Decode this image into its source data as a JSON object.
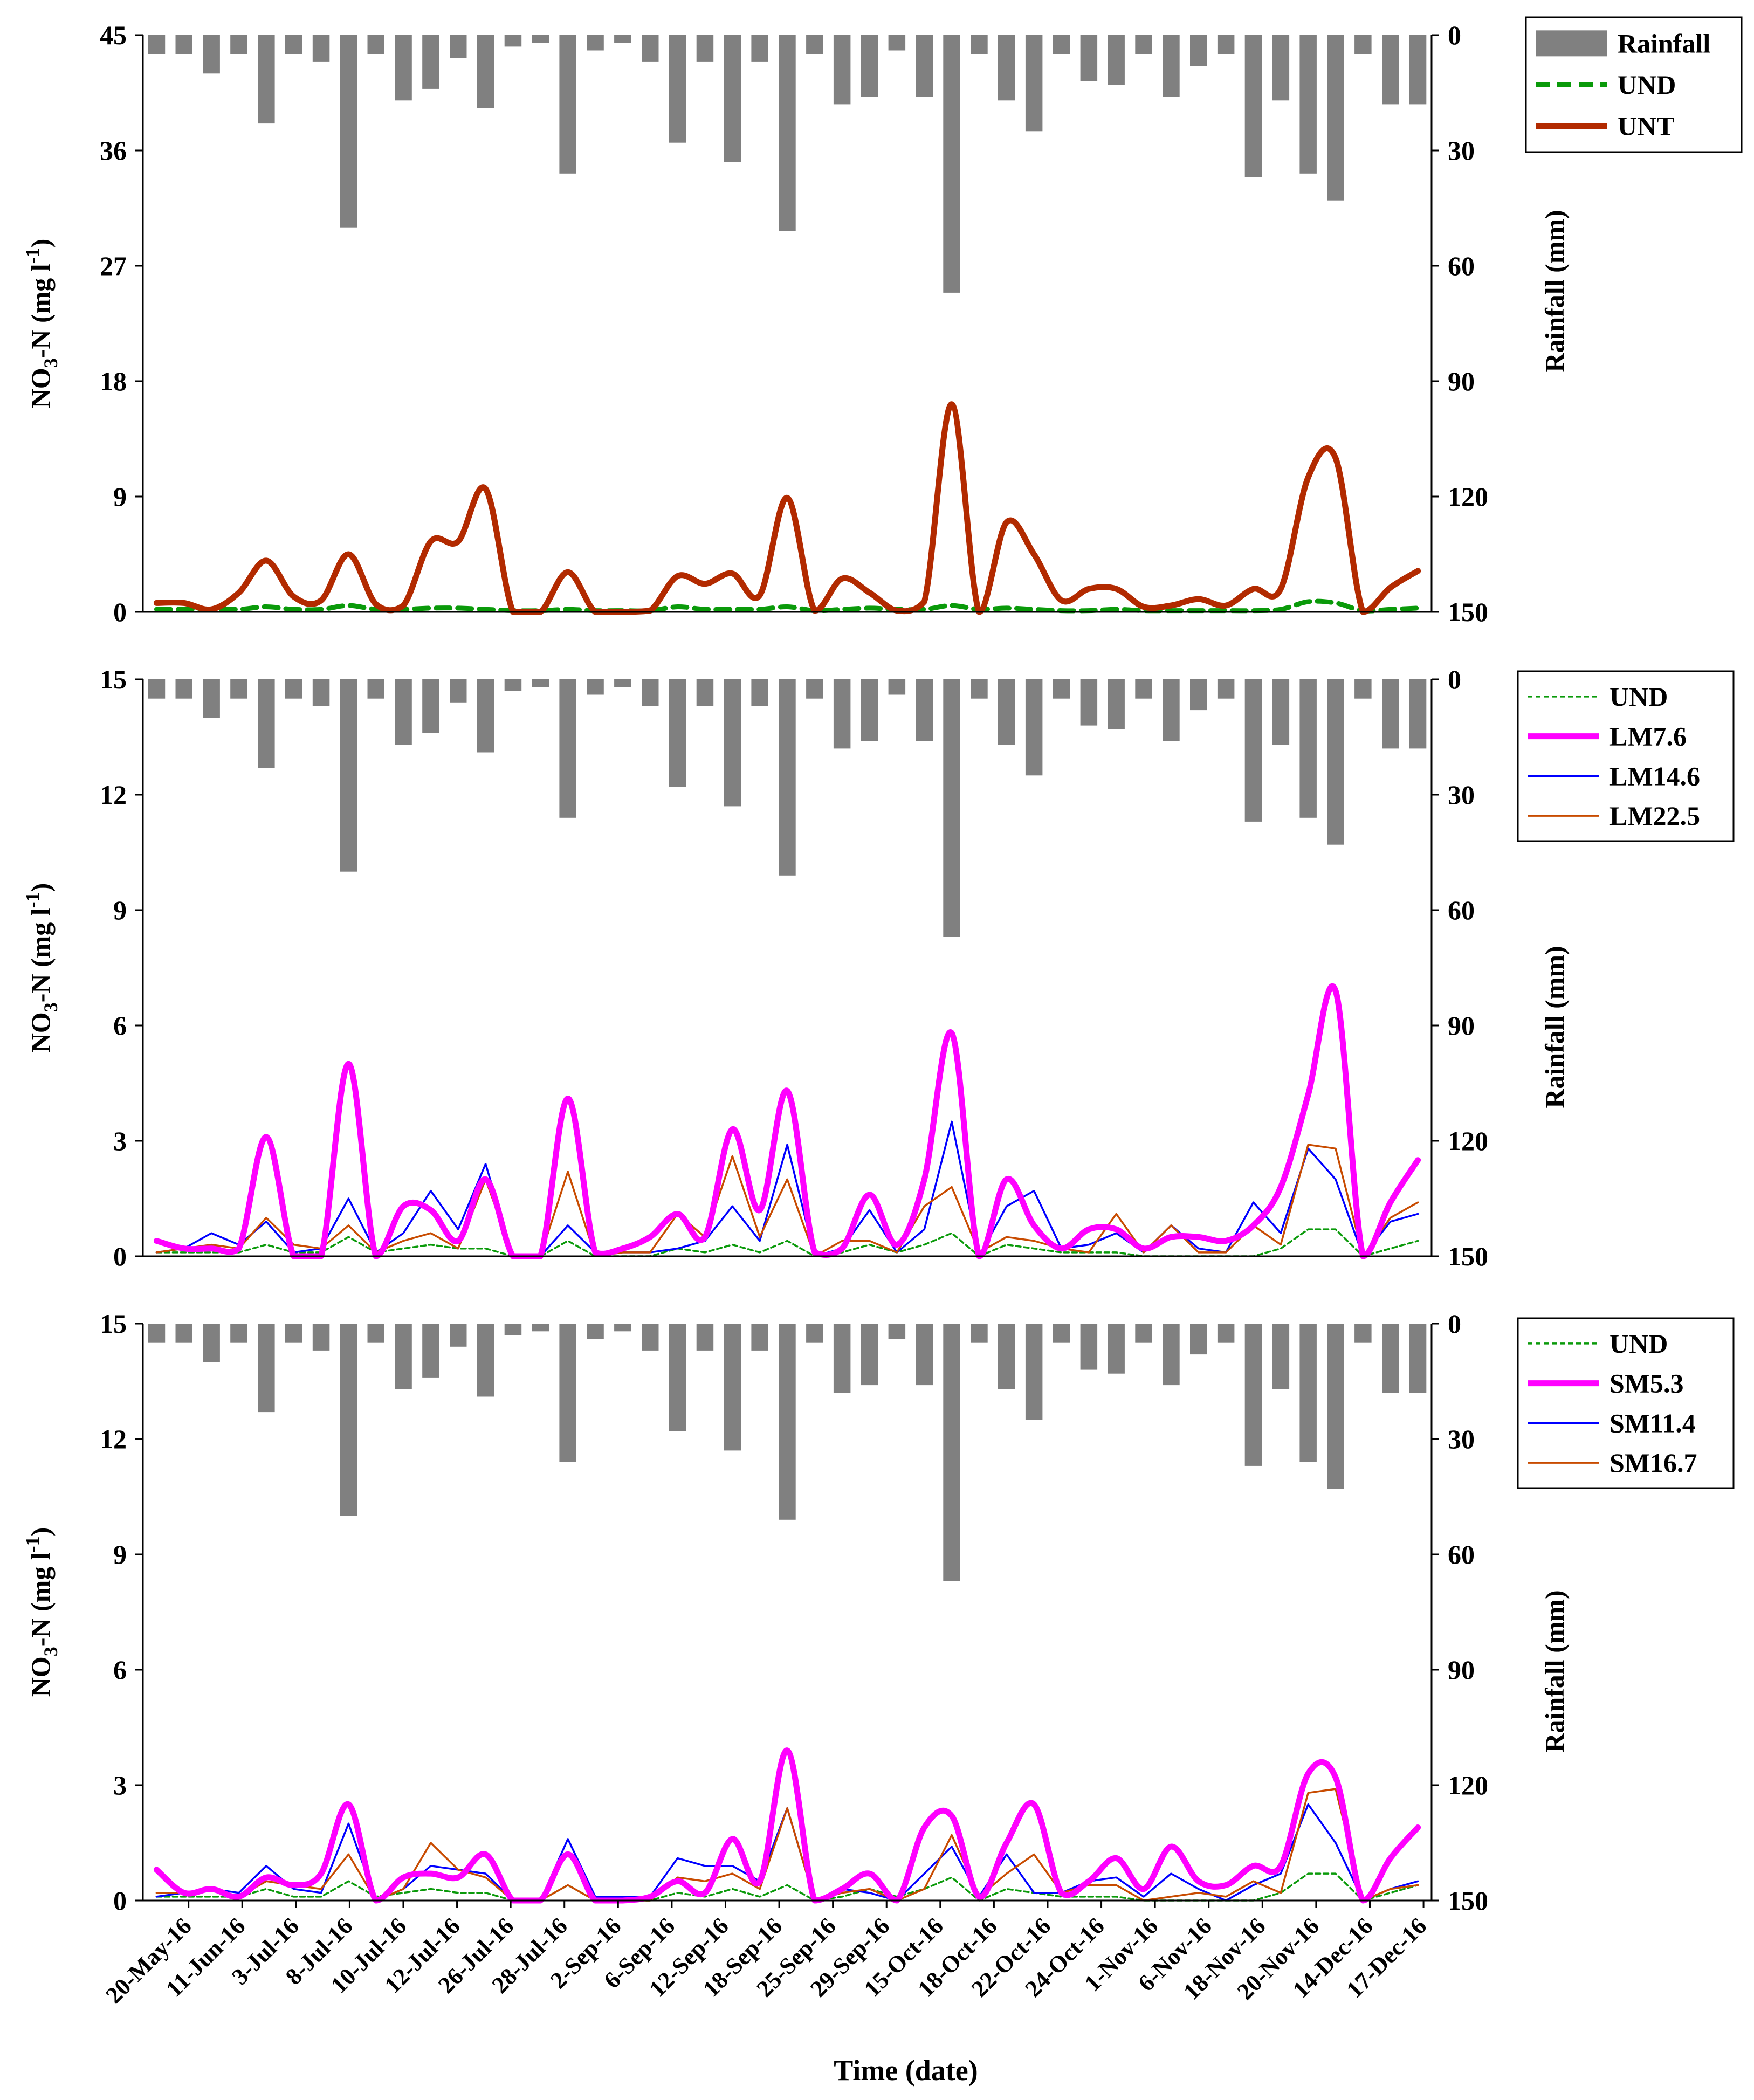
{
  "figure": {
    "xlabel": "Time (date)"
  },
  "colors": {
    "rainfall": "#808080",
    "UND": "#0a9a0a",
    "UNT": "#b22a00",
    "LM7.6": "#ff00ff",
    "LM14.6": "#0000ff",
    "LM22.5": "#c84b00",
    "SM5.3": "#ff00ff",
    "SM11.4": "#0000ff",
    "SM16.7": "#c84b00"
  },
  "date_labels": [
    "20-May-16",
    "11-Jun-16",
    "3-Jul-16",
    "8-Jul-16",
    "10-Jul-16",
    "12-Jul-16",
    "26-Jul-16",
    "28-Jul-16",
    "2-Sep-16",
    "6-Sep-16",
    "12-Sep-16",
    "18-Sep-16",
    "25-Sep-16",
    "29-Sep-16",
    "15-Oct-16",
    "18-Oct-16",
    "22-Oct-16",
    "24-Oct-16",
    "1-Nov-16",
    "6-Nov-16",
    "18-Nov-16",
    "20-Nov-16",
    "14-Dec-16",
    "17-Dec-16"
  ],
  "chart_data": [
    {
      "type": "line",
      "panel": "top",
      "ylabel_main": "NO",
      "ylabel_sub": "3",
      "ylabel_rest": "-N (mg l",
      "ylabel_sup": "-1",
      "ylabel_close": ")",
      "y2label": "Rainfall (mm)",
      "ylim": [
        0,
        45
      ],
      "yticks": [
        0,
        9,
        18,
        27,
        36,
        45
      ],
      "y2lim": [
        0,
        150
      ],
      "y2ticks": [
        0,
        30,
        60,
        90,
        120,
        150
      ],
      "rainfall": [
        5,
        5,
        10,
        5,
        23,
        5,
        7,
        50,
        5,
        17,
        14,
        6,
        19,
        3,
        2,
        36,
        4,
        2,
        7,
        28,
        7,
        33,
        7,
        51,
        5,
        18,
        16,
        4,
        16,
        67,
        5,
        17,
        25,
        5,
        12,
        13,
        5,
        16,
        8,
        5,
        37,
        17,
        36,
        43,
        5,
        18,
        18
      ],
      "legend": [
        "Rainfall",
        "UND",
        "UNT"
      ],
      "series": [
        {
          "name": "UND",
          "style": "dashed-thick",
          "values": [
            0.2,
            0.2,
            0.2,
            0.2,
            0.4,
            0.2,
            0.2,
            0.5,
            0.2,
            0.2,
            0.3,
            0.3,
            0.2,
            0.1,
            0.1,
            0.2,
            0.1,
            0.1,
            0.1,
            0.4,
            0.2,
            0.2,
            0.2,
            0.4,
            0.1,
            0.2,
            0.3,
            0.2,
            0.2,
            0.5,
            0.2,
            0.3,
            0.2,
            0.1,
            0.1,
            0.2,
            0.1,
            0.1,
            0.1,
            0.1,
            0.1,
            0.2,
            0.8,
            0.7,
            0.1,
            0.2,
            0.3
          ]
        },
        {
          "name": "UNT",
          "style": "solid-thick",
          "values": [
            0.7,
            0.7,
            0.2,
            1.5,
            4.0,
            1.2,
            0.9,
            4.5,
            0.6,
            0.5,
            5.5,
            5.5,
            9.6,
            0,
            0,
            3.1,
            0,
            0,
            0.1,
            2.8,
            2.2,
            3.0,
            1.3,
            8.9,
            0.1,
            2.6,
            1.5,
            0.1,
            0.8,
            16.2,
            0,
            7.0,
            4.5,
            0.9,
            1.8,
            1.8,
            0.4,
            0.5,
            1.0,
            0.5,
            1.8,
            1.8,
            10.5,
            12.0,
            0,
            1.9,
            3.2
          ]
        }
      ]
    },
    {
      "type": "line",
      "panel": "middle",
      "ylabel_main": "NO",
      "ylabel_sub": "3",
      "ylabel_rest": "-N (mg l",
      "ylabel_sup": "-1",
      "ylabel_close": ")",
      "y2label": "Rainfall (mm)",
      "ylim": [
        0,
        15
      ],
      "yticks": [
        0,
        3,
        6,
        9,
        12,
        15
      ],
      "y2lim": [
        0,
        150
      ],
      "y2ticks": [
        0,
        30,
        60,
        90,
        120,
        150
      ],
      "rainfall": [
        5,
        5,
        10,
        5,
        23,
        5,
        7,
        50,
        5,
        17,
        14,
        6,
        19,
        3,
        2,
        36,
        4,
        2,
        7,
        28,
        7,
        33,
        7,
        51,
        5,
        18,
        16,
        4,
        16,
        67,
        5,
        17,
        25,
        5,
        12,
        13,
        5,
        16,
        8,
        5,
        37,
        17,
        36,
        43,
        5,
        18,
        18
      ],
      "legend": [
        "UND",
        "LM7.6",
        "LM14.6",
        "LM22.5"
      ],
      "series": [
        {
          "name": "UND",
          "style": "dashed-thin",
          "values": [
            0.1,
            0.1,
            0.1,
            0.1,
            0.3,
            0.1,
            0.1,
            0.5,
            0.1,
            0.2,
            0.3,
            0.2,
            0.2,
            0,
            0,
            0.4,
            0,
            0,
            0,
            0.2,
            0.1,
            0.3,
            0.1,
            0.4,
            0,
            0.1,
            0.3,
            0.1,
            0.3,
            0.6,
            0,
            0.3,
            0.2,
            0.1,
            0.1,
            0.1,
            0,
            0,
            0,
            0,
            0,
            0.2,
            0.7,
            0.7,
            0,
            0.2,
            0.4
          ]
        },
        {
          "name": "LM7.6",
          "style": "solid-thick",
          "values": [
            0.4,
            0.2,
            0.2,
            0.2,
            3.1,
            0,
            0,
            5.0,
            0,
            1.3,
            1.2,
            0.4,
            2.0,
            0,
            0,
            4.1,
            0.1,
            0.2,
            0.5,
            1.1,
            0.5,
            3.3,
            1.2,
            4.3,
            0.1,
            0.2,
            1.6,
            0.3,
            2.0,
            5.8,
            0,
            2.0,
            0.8,
            0.2,
            0.7,
            0.7,
            0.2,
            0.5,
            0.5,
            0.4,
            0.8,
            1.8,
            4.2,
            6.9,
            0,
            1.4,
            2.5
          ]
        },
        {
          "name": "LM14.6",
          "style": "solid-thin",
          "values": [
            0.1,
            0.2,
            0.6,
            0.3,
            0.9,
            0.1,
            0.2,
            1.5,
            0.1,
            0.6,
            1.7,
            0.7,
            2.4,
            0,
            0,
            0.8,
            0.1,
            0.1,
            0.1,
            0.2,
            0.4,
            1.3,
            0.4,
            2.9,
            0,
            0.2,
            1.2,
            0.1,
            0.7,
            3.5,
            0,
            1.3,
            1.7,
            0.2,
            0.3,
            0.6,
            0.1,
            0.8,
            0.2,
            0.1,
            1.4,
            0.6,
            2.8,
            2.0,
            0,
            0.9,
            1.1
          ]
        },
        {
          "name": "LM22.5",
          "style": "solid-thin",
          "values": [
            0.1,
            0.2,
            0.3,
            0.2,
            1.0,
            0.3,
            0.2,
            0.8,
            0.1,
            0.4,
            0.6,
            0.2,
            2.0,
            0,
            0,
            2.2,
            0,
            0.1,
            0.1,
            1.1,
            0.5,
            2.6,
            0.5,
            2.0,
            0,
            0.4,
            0.4,
            0.1,
            1.3,
            1.8,
            0.1,
            0.5,
            0.4,
            0.2,
            0.1,
            1.1,
            0.1,
            0.8,
            0.1,
            0.1,
            0.8,
            0.3,
            2.9,
            2.8,
            0,
            1.0,
            1.4
          ]
        }
      ]
    },
    {
      "type": "line",
      "panel": "bottom",
      "ylabel_main": "NO",
      "ylabel_sub": "3",
      "ylabel_rest": "-N (mg l",
      "ylabel_sup": "-1",
      "ylabel_close": ")",
      "y2label": "Rainfall (mm)",
      "ylim": [
        0,
        15
      ],
      "yticks": [
        0,
        3,
        6,
        9,
        12,
        15
      ],
      "y2lim": [
        0,
        150
      ],
      "y2ticks": [
        0,
        30,
        60,
        90,
        120,
        150
      ],
      "rainfall": [
        5,
        5,
        10,
        5,
        23,
        5,
        7,
        50,
        5,
        17,
        14,
        6,
        19,
        3,
        2,
        36,
        4,
        2,
        7,
        28,
        7,
        33,
        7,
        51,
        5,
        18,
        16,
        4,
        16,
        67,
        5,
        17,
        25,
        5,
        12,
        13,
        5,
        16,
        8,
        5,
        37,
        17,
        36,
        43,
        5,
        18,
        18
      ],
      "legend": [
        "UND",
        "SM5.3",
        "SM11.4",
        "SM16.7"
      ],
      "series": [
        {
          "name": "UND",
          "style": "dashed-thin",
          "values": [
            0.1,
            0.1,
            0.1,
            0.1,
            0.3,
            0.1,
            0.1,
            0.5,
            0.1,
            0.2,
            0.3,
            0.2,
            0.2,
            0,
            0,
            0.4,
            0,
            0,
            0,
            0.2,
            0.1,
            0.3,
            0.1,
            0.4,
            0,
            0.1,
            0.3,
            0.1,
            0.3,
            0.6,
            0,
            0.3,
            0.2,
            0.1,
            0.1,
            0.1,
            0,
            0,
            0,
            0,
            0,
            0.2,
            0.7,
            0.7,
            0,
            0.2,
            0.4
          ]
        },
        {
          "name": "SM5.3",
          "style": "solid-thick",
          "values": [
            0.8,
            0.2,
            0.3,
            0.1,
            0.6,
            0.4,
            0.7,
            2.5,
            0,
            0.6,
            0.7,
            0.6,
            1.2,
            0,
            0,
            1.2,
            0,
            0,
            0.1,
            0.5,
            0.2,
            1.6,
            0.5,
            3.9,
            0,
            0.3,
            0.7,
            0,
            1.9,
            2.2,
            0.1,
            1.5,
            2.5,
            0.2,
            0.5,
            1.1,
            0.3,
            1.4,
            0.5,
            0.4,
            0.9,
            0.9,
            3.3,
            3.2,
            0,
            1.1,
            1.9
          ]
        },
        {
          "name": "SM11.4",
          "style": "solid-thin",
          "values": [
            0.1,
            0.2,
            0.3,
            0.2,
            0.9,
            0.3,
            0.2,
            2.0,
            0,
            0.3,
            0.9,
            0.8,
            0.7,
            0,
            0,
            1.6,
            0.1,
            0.1,
            0.1,
            1.1,
            0.9,
            0.9,
            0.5,
            2.4,
            0,
            0.3,
            0.2,
            0,
            0.7,
            1.4,
            0.1,
            1.2,
            0.2,
            0.2,
            0.5,
            0.6,
            0.1,
            0.7,
            0.3,
            0,
            0.4,
            0.7,
            2.5,
            1.5,
            0,
            0.3,
            0.5
          ]
        },
        {
          "name": "SM16.7",
          "style": "solid-thin",
          "values": [
            0.2,
            0.2,
            0.3,
            0.1,
            0.5,
            0.4,
            0.3,
            1.2,
            0,
            0.3,
            1.5,
            0.8,
            0.6,
            0,
            0,
            0.4,
            0,
            0,
            0,
            0.6,
            0.5,
            0.7,
            0.3,
            2.4,
            0,
            0.2,
            0.3,
            0,
            0.3,
            1.7,
            0.1,
            0.7,
            1.2,
            0.2,
            0.4,
            0.4,
            0,
            0.1,
            0.2,
            0.1,
            0.5,
            0.2,
            2.8,
            2.9,
            0,
            0.3,
            0.4
          ]
        }
      ]
    }
  ]
}
